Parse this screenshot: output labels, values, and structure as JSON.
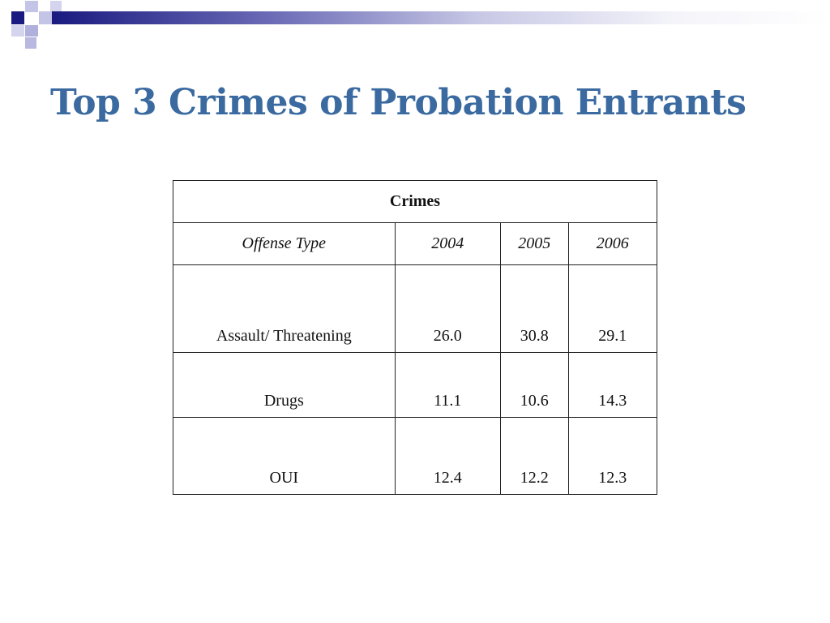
{
  "slide": {
    "title": "Top 3 Crimes of Probation Entrants"
  },
  "table": {
    "caption": "Crimes",
    "columns": [
      "Offense Type",
      "2004",
      "2005",
      "2006"
    ],
    "rows": [
      {
        "offense": "Assault/ Threatening",
        "values": [
          "26.0",
          "30.8",
          "29.1"
        ]
      },
      {
        "offense": "Drugs",
        "values": [
          "11.1",
          "10.6",
          "14.3"
        ]
      },
      {
        "offense": "OUI",
        "values": [
          "12.4",
          "12.2",
          "12.3"
        ]
      }
    ]
  },
  "colors": {
    "title": "#3a6aa0",
    "header_bar_start": "#1a1a80",
    "border": "#222222"
  }
}
